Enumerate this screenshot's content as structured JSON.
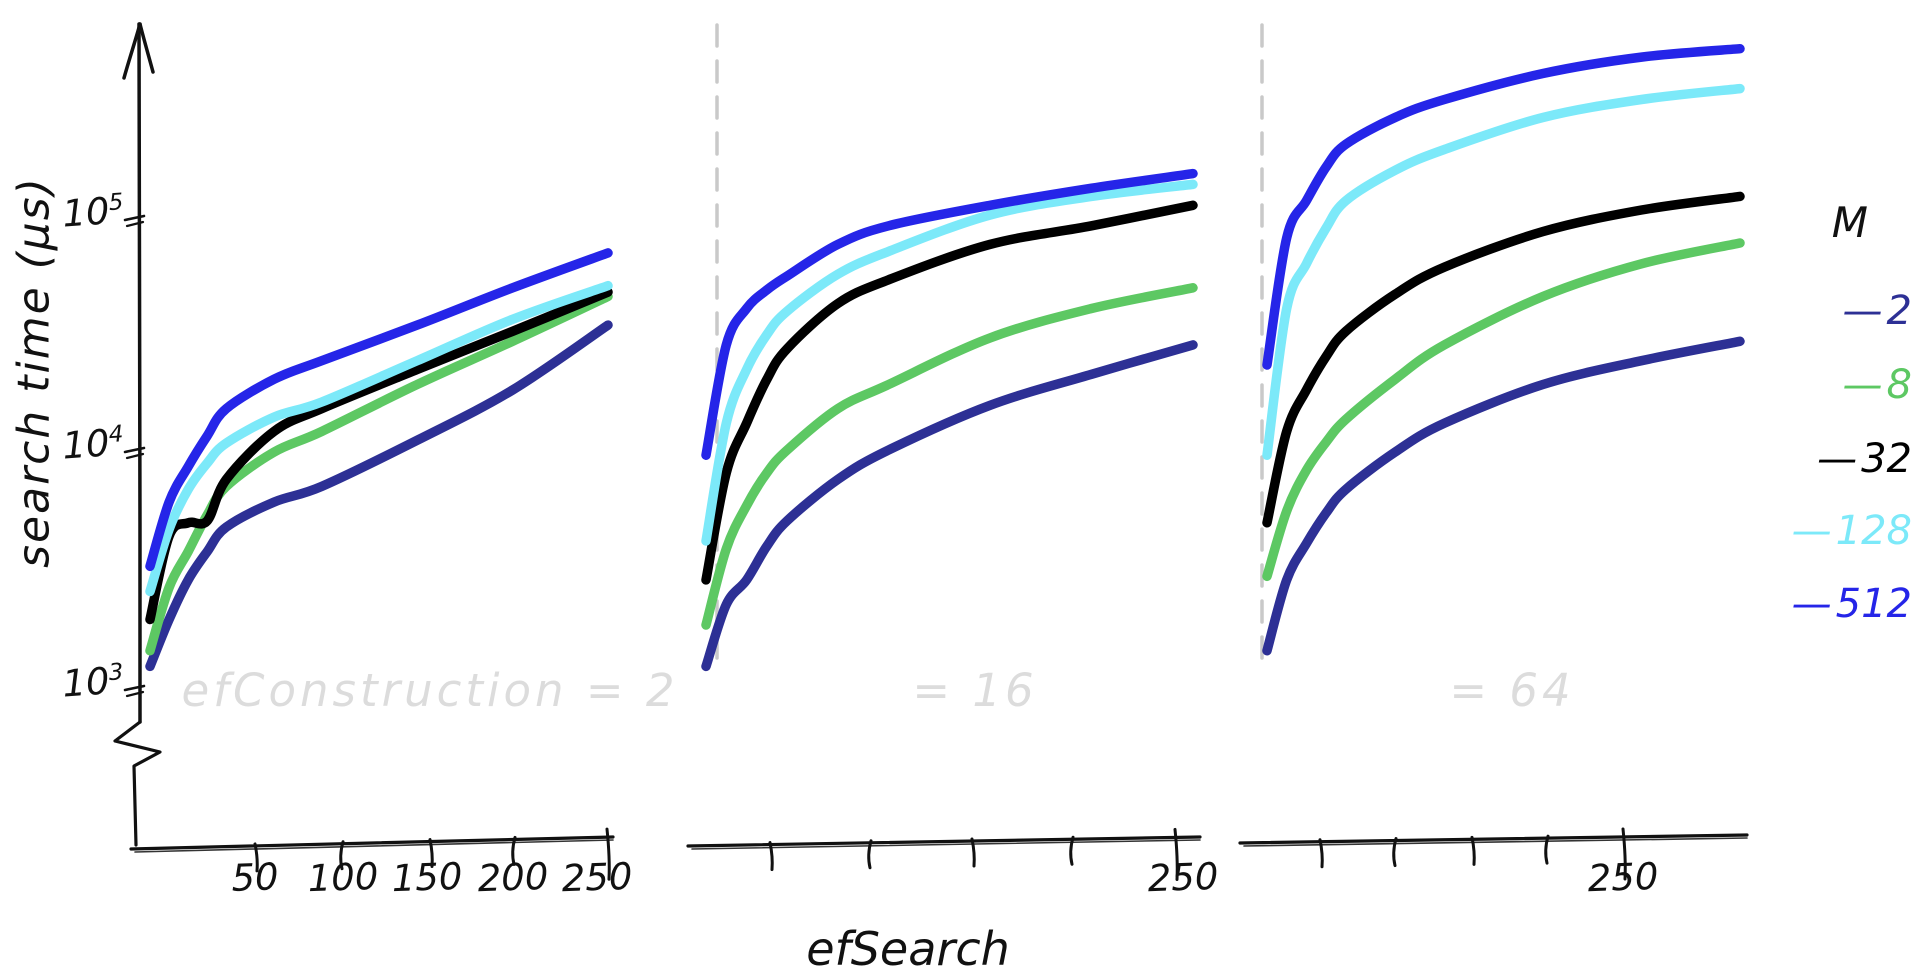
{
  "axes": {
    "y_label": "search time (μs)",
    "x_label": "efSearch",
    "y_ticks": [
      {
        "base": "10",
        "exp": "5"
      },
      {
        "base": "10",
        "exp": "4"
      },
      {
        "base": "10",
        "exp": "3"
      }
    ]
  },
  "panels": [
    {
      "watermark": "efConstruction = 2",
      "x_tick_labels": [
        "50",
        "100",
        "150",
        "200",
        "250"
      ]
    },
    {
      "watermark": "= 16",
      "x_tick_labels": [
        "250"
      ]
    },
    {
      "watermark": "= 64",
      "x_tick_labels": [
        "250"
      ]
    }
  ],
  "legend": {
    "title": "M",
    "entries": [
      {
        "dash": "—",
        "label": "2",
        "color": "#2d3095"
      },
      {
        "dash": "—",
        "label": "8",
        "color": "#5dc863"
      },
      {
        "dash": "—",
        "label": "32",
        "color": "#000000"
      },
      {
        "dash": "—",
        "label": "128",
        "color": "#7ce9f9"
      },
      {
        "dash": "—",
        "label": "512",
        "color": "#2525e8"
      }
    ]
  },
  "chart_data": {
    "type": "line",
    "xlabel": "efSearch",
    "ylabel": "search time (μs)",
    "yscale": "log",
    "ylim": [
      1000,
      600000
    ],
    "xlim": [
      10,
      250
    ],
    "grid": false,
    "legend_position": "right",
    "x": [
      10,
      20,
      30,
      40,
      50,
      75,
      100,
      150,
      200,
      250
    ],
    "panels": [
      {
        "label": "efConstruction = 2",
        "series": [
          {
            "name": "M=2",
            "color": "#2d3095",
            "values": [
              1200,
              1900,
              2800,
              3700,
              4700,
              6000,
              7000,
              11000,
              18000,
              34000
            ]
          },
          {
            "name": "M=8",
            "color": "#5dc863",
            "values": [
              1400,
              2600,
              3700,
              5300,
              7000,
              9800,
              12000,
              19000,
              29000,
              45000
            ]
          },
          {
            "name": "M=32",
            "color": "#000000",
            "values": [
              1900,
              4300,
              4900,
              5000,
              7500,
              12000,
              15000,
              22000,
              32000,
              47000
            ]
          },
          {
            "name": "M=128",
            "color": "#7ce9f9",
            "values": [
              2500,
              4600,
              6800,
              8800,
              10700,
              13800,
              16000,
              24000,
              36000,
              50000
            ]
          },
          {
            "name": "M=512",
            "color": "#2525e8",
            "values": [
              3200,
              6000,
              8500,
              11500,
              15000,
              20000,
              24000,
              34000,
              49000,
              69000
            ]
          }
        ]
      },
      {
        "label": "efConstruction = 16",
        "series": [
          {
            "name": "M=2",
            "color": "#2d3095",
            "values": [
              1200,
              2200,
              2800,
              3900,
              5000,
              7500,
              10000,
              15500,
              21000,
              28000
            ]
          },
          {
            "name": "M=8",
            "color": "#5dc863",
            "values": [
              1800,
              3800,
              5800,
              8000,
              10000,
              15000,
              19000,
              30000,
              40000,
              49000
            ]
          },
          {
            "name": "M=32",
            "color": "#000000",
            "values": [
              2800,
              8000,
              13000,
              20000,
              27000,
              42000,
              53000,
              75000,
              90000,
              110000
            ]
          },
          {
            "name": "M=128",
            "color": "#7ce9f9",
            "values": [
              4100,
              13000,
              22000,
              31000,
              39000,
              56000,
              70000,
              100000,
              120000,
              135000
            ]
          },
          {
            "name": "M=512",
            "color": "#2525e8",
            "values": [
              9500,
              28000,
              40000,
              48000,
              55000,
              75000,
              90000,
              110000,
              130000,
              150000
            ]
          }
        ]
      },
      {
        "label": "efConstruction = 64",
        "series": [
          {
            "name": "M=2",
            "color": "#2d3095",
            "values": [
              1400,
              2800,
              4000,
              5400,
              6800,
              9800,
              13000,
              19000,
              24000,
              29000
            ]
          },
          {
            "name": "M=8",
            "color": "#5dc863",
            "values": [
              2900,
              5500,
              8200,
              10800,
              13500,
              20000,
              28000,
              45000,
              62000,
              76000
            ]
          },
          {
            "name": "M=32",
            "color": "#000000",
            "values": [
              4900,
              12000,
              18000,
              25000,
              32000,
              46000,
              60000,
              85000,
              105000,
              120000
            ]
          },
          {
            "name": "M=128",
            "color": "#7ce9f9",
            "values": [
              9500,
              40000,
              62000,
              88000,
              115000,
              155000,
              190000,
              260000,
              310000,
              345000
            ]
          },
          {
            "name": "M=512",
            "color": "#2525e8",
            "values": [
              23000,
              80000,
              115000,
              160000,
              200000,
              260000,
              310000,
              400000,
              470000,
              510000
            ]
          }
        ]
      }
    ]
  }
}
